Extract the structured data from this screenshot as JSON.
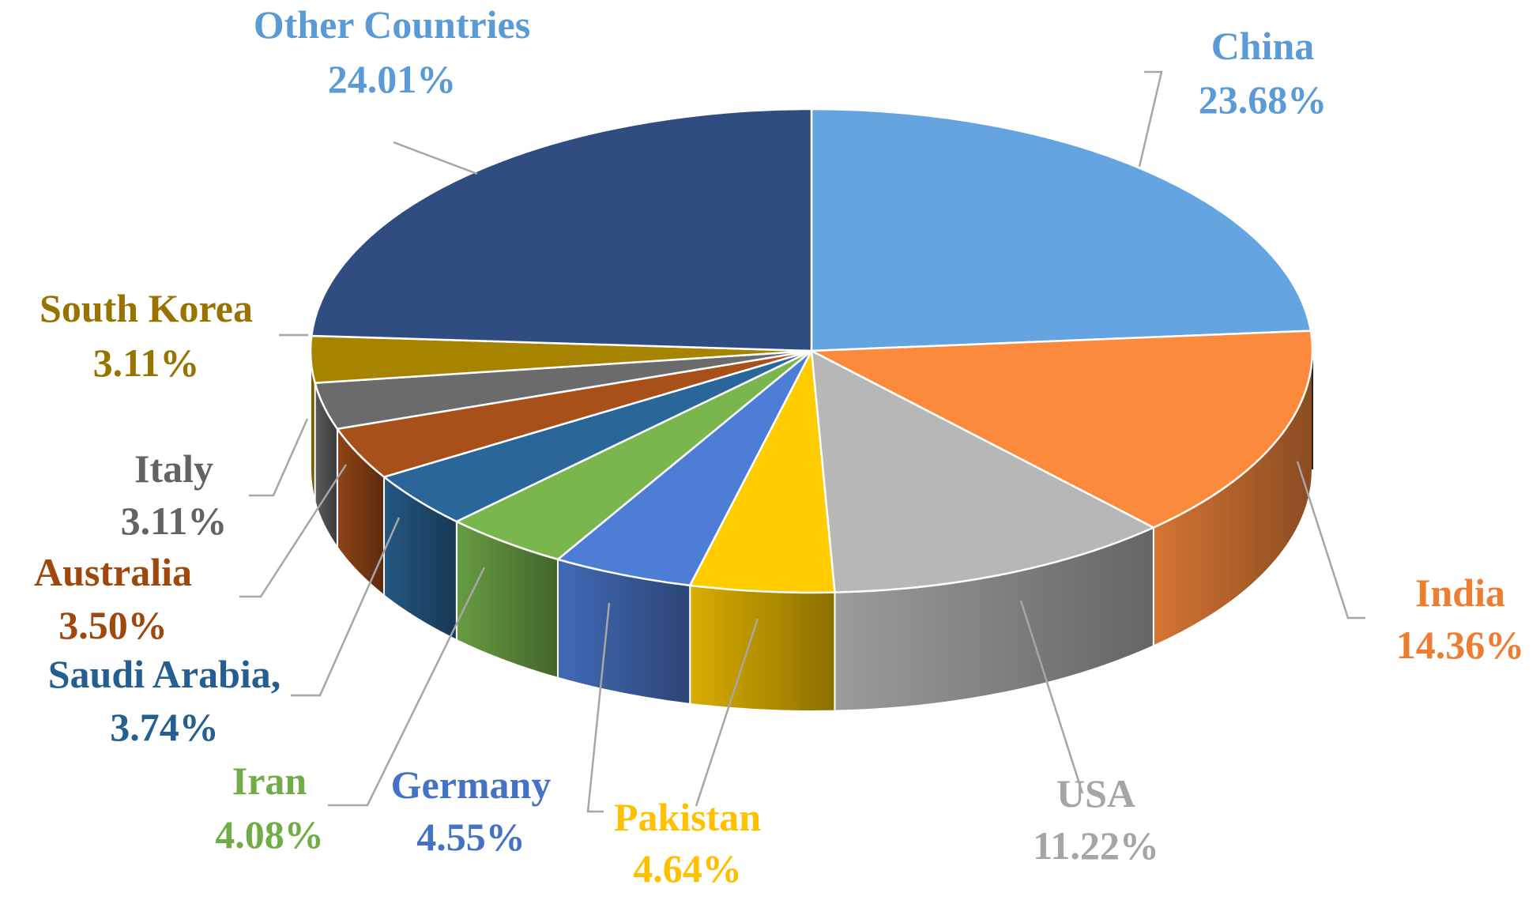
{
  "chart_data": {
    "type": "pie",
    "three_d": true,
    "legend": "none",
    "slices": [
      {
        "label": "China",
        "value_text": "23.68%",
        "value": 23.68,
        "color": "#63A4E1",
        "label_color": "#5B9BD5"
      },
      {
        "label": "India",
        "value_text": "14.36%",
        "value": 14.36,
        "color": "#FB8A3C",
        "label_color": "#ED7D31"
      },
      {
        "label": "USA",
        "value_text": "11.22%",
        "value": 11.22,
        "color": "#B7B7B7",
        "label_color": "#A5A5A5"
      },
      {
        "label": "Pakistan",
        "value_text": "4.64%",
        "value": 4.64,
        "color": "#FFCC00",
        "label_color": "#FFC000"
      },
      {
        "label": "Germany",
        "value_text": "4.55%",
        "value": 4.55,
        "color": "#4E7DD6",
        "label_color": "#4472C4"
      },
      {
        "label": "Iran",
        "value_text": "4.08%",
        "value": 4.08,
        "color": "#79B74E",
        "label_color": "#70AD47"
      },
      {
        "label": "Saudi Arabia,",
        "value_text": "3.74%",
        "value": 3.74,
        "color": "#2A6699",
        "label_color": "#255E91"
      },
      {
        "label": "Australia",
        "value_text": "3.50%",
        "value": 3.5,
        "color": "#A8501A",
        "label_color": "#9E480E"
      },
      {
        "label": "Italy",
        "value_text": "3.11%",
        "value": 3.11,
        "color": "#6B6B6B",
        "label_color": "#636363"
      },
      {
        "label": "South Korea",
        "value_text": "3.11%",
        "value": 3.11,
        "color": "#A68400",
        "label_color": "#997300"
      },
      {
        "label": "Other Countries",
        "value_text": "24.01%",
        "value": 24.01,
        "color": "#2F4D80",
        "label_color": "#5B9BD5"
      }
    ]
  }
}
